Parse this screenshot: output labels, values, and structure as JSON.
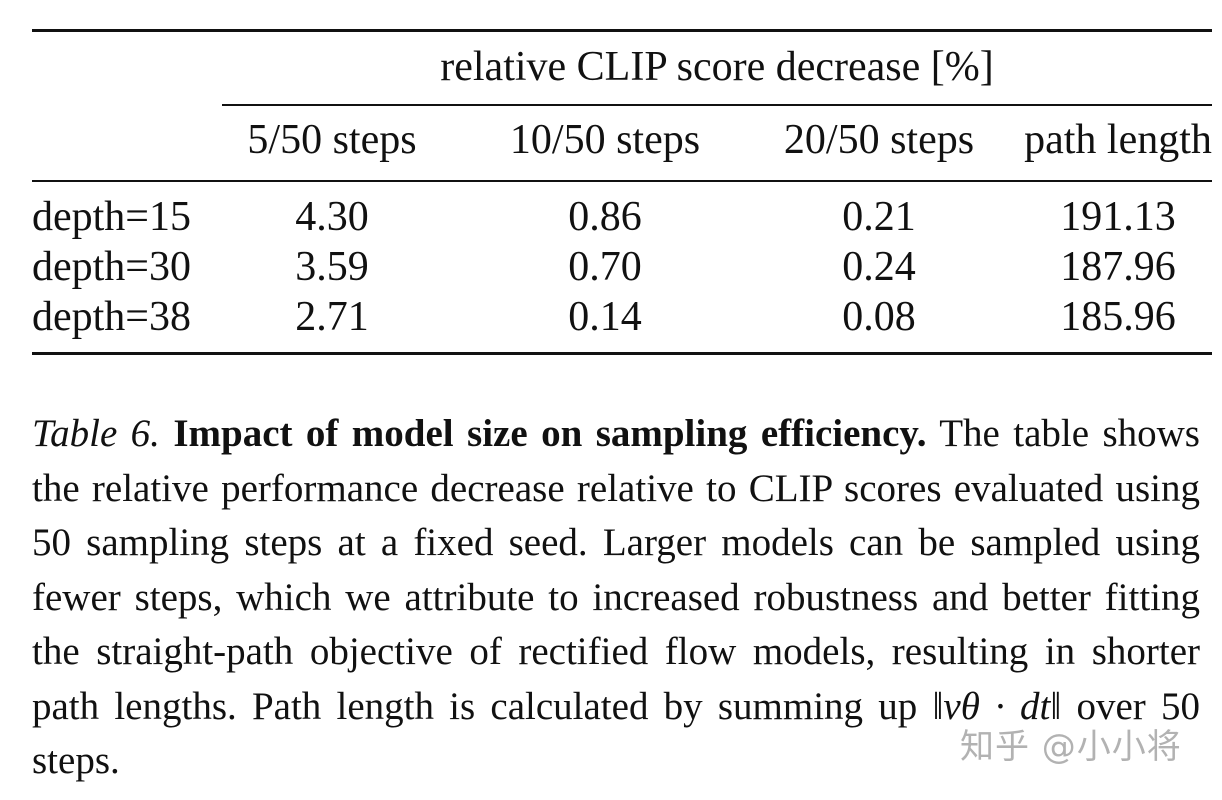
{
  "table": {
    "span_header": "relative CLIP score decrease [%]",
    "columns": [
      "5/50 steps",
      "10/50 steps",
      "20/50 steps",
      "path length"
    ],
    "rows": [
      {
        "label": "depth=15",
        "values": [
          "4.30",
          "0.86",
          "0.21",
          "191.13"
        ]
      },
      {
        "label": "depth=30",
        "values": [
          "3.59",
          "0.70",
          "0.24",
          "187.96"
        ]
      },
      {
        "label": "depth=38",
        "values": [
          "2.71",
          "0.14",
          "0.08",
          "185.96"
        ]
      }
    ]
  },
  "caption": {
    "label": "Table 6.",
    "title": "Impact of model size on sampling efficiency.",
    "body_pre": " The table shows the relative performance decrease relative to CLIP scores evaluated using 50 sampling steps at a fixed seed. Larger models can be sampled using fewer steps, which we attribute to increased robustness and better fitting the straight-path objective of rectified flow models, resulting in shorter path lengths.  Path length is calculated by summing up ",
    "formula": "‖vθ · dt‖",
    "body_post": " over 50 steps."
  },
  "watermark": "知乎 @小小将"
}
